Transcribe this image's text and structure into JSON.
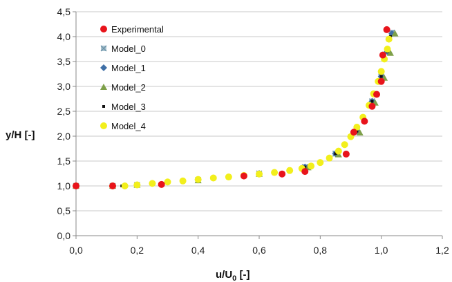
{
  "chart_data": {
    "type": "scatter",
    "title": "",
    "xlabel": "u/U",
    "xlabel_sub": "0",
    "xlabel_suffix": " [-]",
    "ylabel": "y/H [-]",
    "xlim": [
      0,
      1.2
    ],
    "ylim": [
      0,
      4.5
    ],
    "x_ticks": [
      "0,0",
      "0,2",
      "0,4",
      "0,6",
      "0,8",
      "1,0",
      "1,2"
    ],
    "y_ticks": [
      "0,0",
      "0,5",
      "1,0",
      "1,5",
      "2,0",
      "2,5",
      "3,0",
      "3,5",
      "4,0",
      "4,5"
    ],
    "grid": "horizontal",
    "legend_position": "top-left",
    "series": [
      {
        "name": "Experimental",
        "marker": "circle",
        "color": "#e8141b",
        "x": [
          0.0,
          0.12,
          0.28,
          0.55,
          0.675,
          0.75,
          0.885,
          0.91,
          0.945,
          0.97,
          0.985,
          1.0,
          1.005,
          1.018
        ],
        "y": [
          1.0,
          1.0,
          1.03,
          1.2,
          1.24,
          1.29,
          1.64,
          2.08,
          2.3,
          2.6,
          2.84,
          3.1,
          3.63,
          4.14
        ]
      },
      {
        "name": "Model_0",
        "marker": "x",
        "color": "#9ab8c8",
        "x": [
          0.0,
          0.12,
          0.2,
          0.4,
          0.6,
          0.75,
          0.85,
          0.92,
          0.97,
          1.0,
          1.02,
          1.035
        ],
        "y": [
          1.0,
          1.0,
          1.02,
          1.12,
          1.25,
          1.38,
          1.65,
          2.1,
          2.7,
          3.2,
          3.7,
          4.08
        ]
      },
      {
        "name": "Model_1",
        "marker": "diamond",
        "color": "#3f6fa6",
        "x": [
          0.0,
          0.12,
          0.2,
          0.4,
          0.6,
          0.75,
          0.85,
          0.92,
          0.97,
          1.0,
          1.02,
          1.035
        ],
        "y": [
          1.0,
          1.0,
          1.02,
          1.12,
          1.25,
          1.38,
          1.65,
          2.1,
          2.7,
          3.2,
          3.7,
          4.06
        ]
      },
      {
        "name": "Model_2",
        "marker": "triangle",
        "color": "#7ea04a",
        "x": [
          0.0,
          0.12,
          0.2,
          0.4,
          0.6,
          0.76,
          0.86,
          0.93,
          0.98,
          1.01,
          1.03,
          1.045
        ],
        "y": [
          1.0,
          1.0,
          1.02,
          1.11,
          1.24,
          1.37,
          1.63,
          2.07,
          2.67,
          3.17,
          3.67,
          4.06
        ]
      },
      {
        "name": "Model_3",
        "marker": "square",
        "color": "#111111",
        "x": [
          0.0,
          0.15,
          0.2,
          0.4,
          0.6,
          0.75,
          0.85,
          0.92,
          0.97,
          1.0,
          1.02,
          1.03
        ],
        "y": [
          1.0,
          1.0,
          1.02,
          1.12,
          1.25,
          1.38,
          1.65,
          2.1,
          2.7,
          3.2,
          3.7,
          4.0
        ]
      },
      {
        "name": "Model_4",
        "marker": "circle",
        "color": "#f2ef1c",
        "x": [
          0.0,
          0.12,
          0.16,
          0.2,
          0.25,
          0.3,
          0.35,
          0.4,
          0.45,
          0.5,
          0.55,
          0.6,
          0.65,
          0.7,
          0.74,
          0.77,
          0.8,
          0.83,
          0.86,
          0.88,
          0.9,
          0.92,
          0.94,
          0.96,
          0.975,
          0.99,
          1.0,
          1.01,
          1.02,
          1.025
        ],
        "y": [
          1.0,
          1.0,
          1.0,
          1.02,
          1.05,
          1.08,
          1.1,
          1.13,
          1.16,
          1.18,
          1.21,
          1.24,
          1.27,
          1.31,
          1.35,
          1.4,
          1.47,
          1.56,
          1.7,
          1.83,
          1.99,
          2.18,
          2.38,
          2.62,
          2.85,
          3.1,
          3.3,
          3.55,
          3.75,
          3.95
        ]
      }
    ]
  }
}
